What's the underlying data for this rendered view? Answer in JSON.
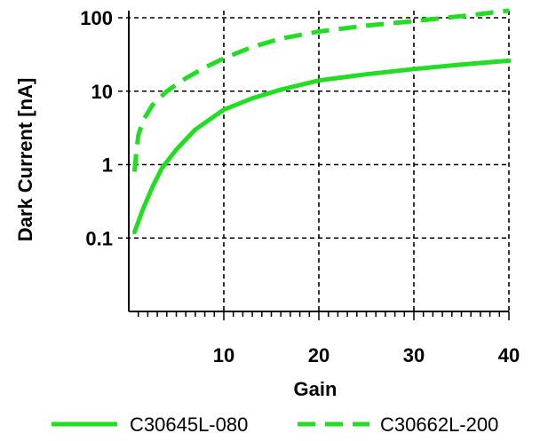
{
  "chart_data": {
    "type": "line",
    "xlabel": "Gain",
    "ylabel": "Dark Current [nA]",
    "xlim": [
      0,
      40
    ],
    "ylim": [
      0.01,
      100
    ],
    "yscale": "log",
    "grid": true,
    "x_ticks": [
      10,
      20,
      30,
      40
    ],
    "x_tick_labels": [
      "10",
      "20",
      "30",
      "40"
    ],
    "y_ticks": [
      0.1,
      1,
      10,
      100
    ],
    "y_tick_labels": [
      "0.1",
      "1",
      "10",
      "100"
    ],
    "legend_position": "bottom",
    "series": [
      {
        "name": "C30645L-080",
        "style": "solid",
        "color": "#22dd22",
        "x": [
          0.6,
          1.5,
          2.5,
          3.5,
          5,
          7,
          10,
          13,
          16,
          20,
          25,
          30,
          35,
          40
        ],
        "y": [
          0.12,
          0.25,
          0.5,
          0.9,
          1.6,
          3.0,
          5.6,
          8.0,
          10.5,
          14.0,
          17.0,
          20.0,
          23.0,
          26.0
        ]
      },
      {
        "name": "C30662L-200",
        "style": "dashed",
        "color": "#22dd22",
        "x": [
          0.6,
          0.8,
          1.0,
          1.5,
          2.5,
          4,
          6,
          8,
          10,
          13,
          16,
          20,
          25,
          30,
          35,
          40
        ],
        "y": [
          0.8,
          1.5,
          2.5,
          4.0,
          6.5,
          10.0,
          15.0,
          21.0,
          28.0,
          40.0,
          52.0,
          65.0,
          78.0,
          90.0,
          105.0,
          125.0
        ]
      }
    ]
  }
}
